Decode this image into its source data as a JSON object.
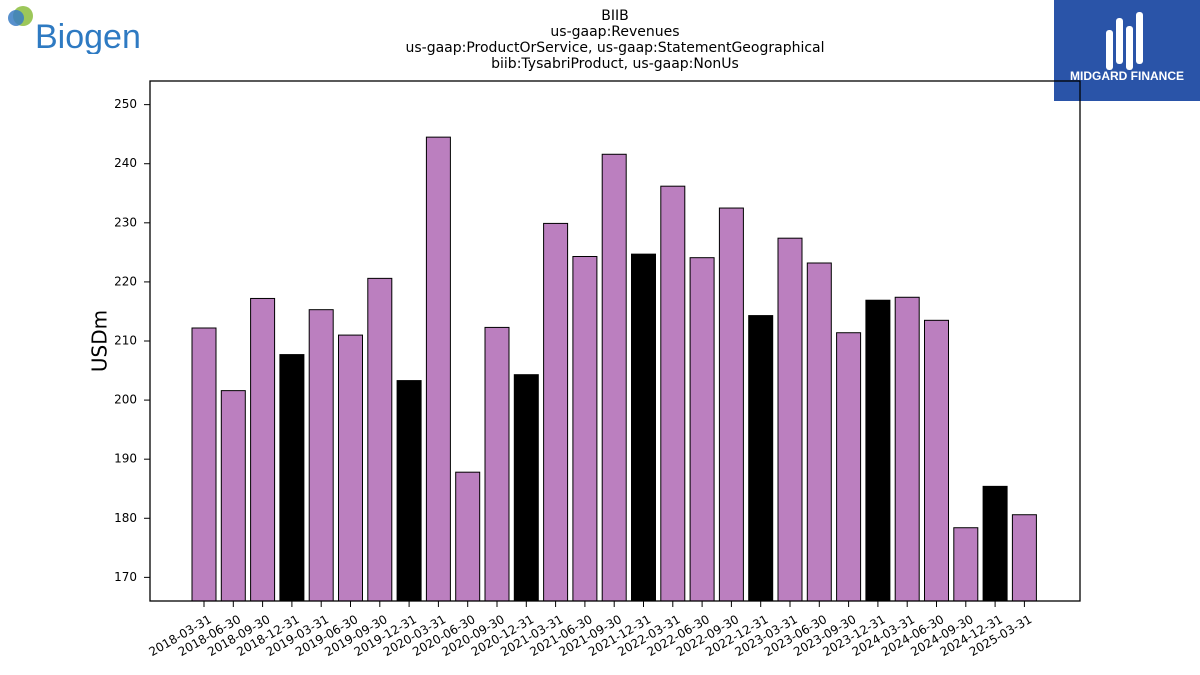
{
  "header": {
    "company_logo_text": "Biogen",
    "brand_logo_text": "MIDGARD FINANCE"
  },
  "chart_data": {
    "type": "bar",
    "title": [
      "BIIB",
      "us-gaap:Revenues",
      "us-gaap:ProductOrService, us-gaap:StatementGeographical",
      "biib:TysabriProduct, us-gaap:NonUs"
    ],
    "xlabel": "",
    "ylabel": "USDm",
    "ylim": [
      166,
      254
    ],
    "yticks": [
      170,
      180,
      190,
      200,
      210,
      220,
      230,
      240,
      250
    ],
    "grid": false,
    "colors": {
      "quarter": "#bb7fbf",
      "year_end": "#000000",
      "edge": "#000000"
    },
    "categories": [
      "2018-03-31",
      "2018-06-30",
      "2018-09-30",
      "2018-12-31",
      "2019-03-31",
      "2019-06-30",
      "2019-09-30",
      "2019-12-31",
      "2020-03-31",
      "2020-06-30",
      "2020-09-30",
      "2020-12-31",
      "2021-03-31",
      "2021-06-30",
      "2021-09-30",
      "2021-12-31",
      "2022-03-31",
      "2022-06-30",
      "2022-09-30",
      "2022-12-31",
      "2023-03-31",
      "2023-06-30",
      "2023-09-30",
      "2023-12-31",
      "2024-03-31",
      "2024-06-30",
      "2024-09-30",
      "2024-12-31",
      "2025-03-31"
    ],
    "values": [
      212.2,
      201.6,
      217.2,
      207.7,
      215.3,
      211.0,
      220.6,
      203.3,
      244.5,
      187.8,
      212.3,
      204.3,
      229.9,
      224.3,
      241.6,
      224.7,
      236.2,
      224.1,
      232.5,
      214.3,
      227.4,
      223.2,
      211.4,
      216.9,
      217.4,
      213.5,
      178.4,
      185.4,
      180.6
    ]
  }
}
